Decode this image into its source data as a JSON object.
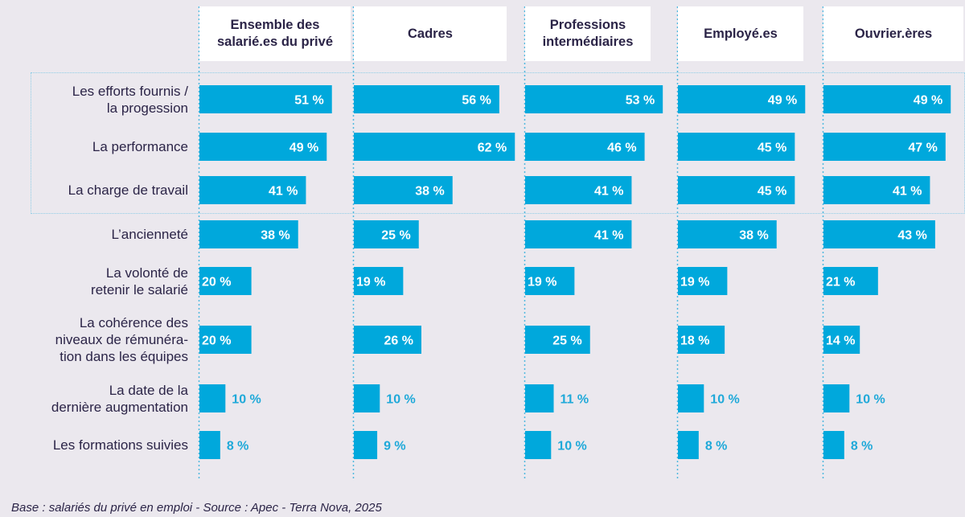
{
  "chart_data": {
    "type": "bar",
    "orientation": "horizontal",
    "groups": [
      "Ensemble des\nsalarié.es du privé",
      "Cadres",
      "Professions\nintermédiaires",
      "Employé.es",
      "Ouvrier.ères"
    ],
    "categories": [
      "Les efforts fournis /\nla progession",
      "La performance",
      "La charge de travail",
      "L’ancienneté",
      "La volonté de\nretenir le salarié",
      "La cohérence des\nniveaux de rémunéra-\ntion dans les équipes",
      "La date de la\ndernière augmentation",
      "Les formations suivies"
    ],
    "series": [
      {
        "name": "Ensemble des salarié.es du privé",
        "values": [
          51,
          49,
          41,
          38,
          20,
          20,
          10,
          8
        ]
      },
      {
        "name": "Cadres",
        "values": [
          56,
          62,
          38,
          25,
          19,
          26,
          10,
          9
        ]
      },
      {
        "name": "Professions intermédiaires",
        "values": [
          53,
          46,
          41,
          41,
          19,
          25,
          11,
          10
        ]
      },
      {
        "name": "Employé.es",
        "values": [
          49,
          45,
          45,
          38,
          19,
          18,
          10,
          8
        ]
      },
      {
        "name": "Ouvrier.ères",
        "values": [
          49,
          47,
          41,
          43,
          21,
          14,
          10,
          8
        ]
      }
    ],
    "value_suffix": " %",
    "highlighted_categories": 3,
    "source": "Base : salariés du privé en emploi - Source : Apec - Terra Nova, 2025"
  },
  "colors": {
    "bar": "#00a8dc",
    "label_inside": "#ffffff",
    "label_outside": "#1fa9d9",
    "text": "#2b2447",
    "guide": "#4fb8df",
    "background": "#ebe8ee"
  }
}
